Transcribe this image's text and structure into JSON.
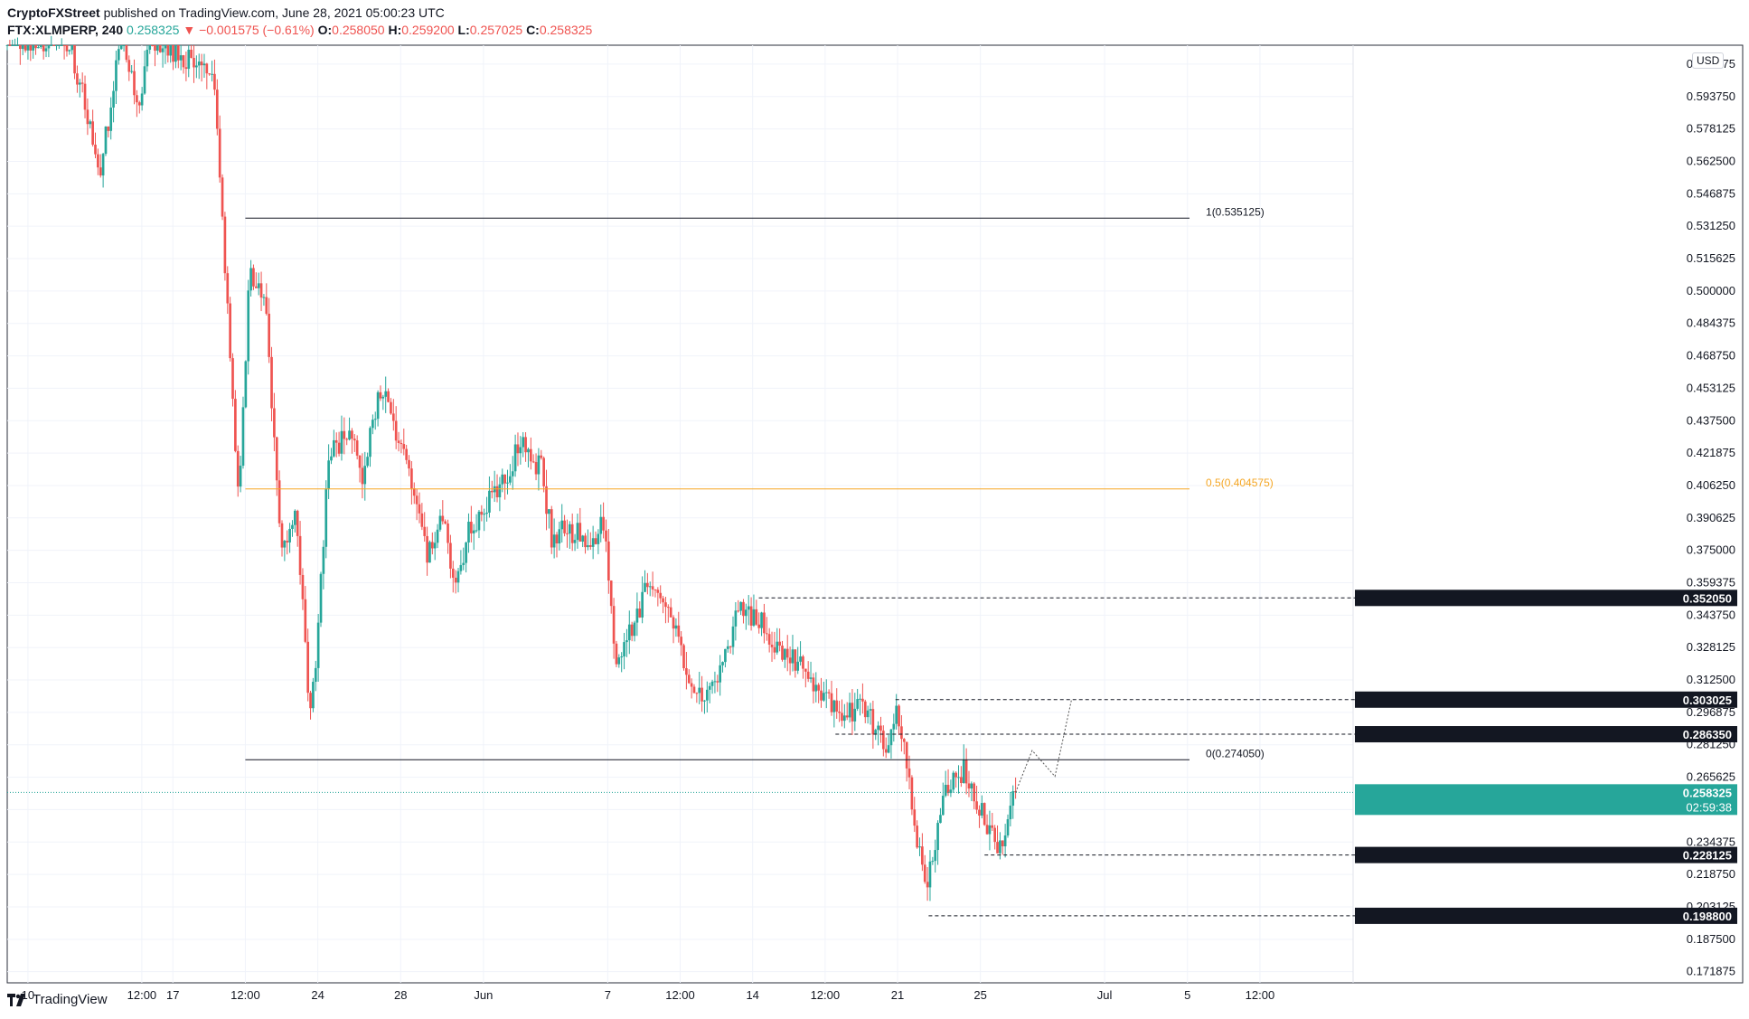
{
  "header": {
    "publisher": "CryptoFXStreet",
    "published_text": "published on TradingView.com, June 28, 2021 05:00:23 UTC",
    "symbol": "FTX:XLMPERP, 240",
    "last": "0.258325",
    "change": "−0.001575 (−0.61%)",
    "open_label": "O:",
    "open": "0.258050",
    "high_label": "H:",
    "high": "0.259200",
    "low_label": "L:",
    "low": "0.257025",
    "close_label": "C:",
    "close": "0.258325"
  },
  "currency_badge": "USD",
  "footer": {
    "brand": "TradingView",
    "logo_icon": "tradingview-logo-icon"
  },
  "colors": {
    "up": "#26a69a",
    "down": "#ef5350",
    "fib_mid": "#f5a623",
    "level_line": "#131722",
    "price_line": "#26a69a",
    "axis_text": "#131722"
  },
  "chart_data": {
    "type": "candlestick",
    "symbol": "XLMPERP",
    "interval": "240",
    "y_axis": {
      "range": [
        0.1665,
        0.6185
      ],
      "tick_labels": [
        "0.609375",
        "0.593750",
        "0.578125",
        "0.562500",
        "0.546875",
        "0.531250",
        "0.515625",
        "0.500000",
        "0.484375",
        "0.468750",
        "0.453125",
        "0.437500",
        "0.421875",
        "0.406250",
        "0.390625",
        "0.375000",
        "0.359375",
        "0.343750",
        "0.328125",
        "0.312500",
        "0.296875",
        "0.281250",
        "0.265625",
        "0.250000",
        "0.234375",
        "0.218750",
        "0.203125",
        "0.187500",
        "0.171875"
      ]
    },
    "x_axis": {
      "range_days_label": "May 9 2021 – Jul 13 2021",
      "ticks": [
        {
          "label": "10",
          "t": 1.0
        },
        {
          "label": "12:00",
          "t": 6.5
        },
        {
          "label": "17",
          "t": 8.0
        },
        {
          "label": "12:00",
          "t": 11.5
        },
        {
          "label": "24",
          "t": 15.0
        },
        {
          "label": "28",
          "t": 19.0
        },
        {
          "label": "Jun",
          "t": 23.0
        },
        {
          "label": "7",
          "t": 29.0
        },
        {
          "label": "12:00",
          "t": 32.5
        },
        {
          "label": "14",
          "t": 36.0
        },
        {
          "label": "12:00",
          "t": 39.5
        },
        {
          "label": "21",
          "t": 43.0
        },
        {
          "label": "25",
          "t": 47.0
        },
        {
          "label": "Jul",
          "t": 53.0
        },
        {
          "label": "5",
          "t": 57.0
        },
        {
          "label": "12:00",
          "t": 60.5
        }
      ]
    },
    "fib_levels": [
      {
        "label": "1(0.535125)",
        "value": 0.535125,
        "color": "#131722"
      },
      {
        "label": "0.5(0.404575)",
        "value": 0.404575,
        "color": "#f5a623"
      },
      {
        "label": "0(0.274050)",
        "value": 0.27405,
        "color": "#131722"
      }
    ],
    "horizontal_levels": [
      {
        "label": "0.352050",
        "value": 0.35205
      },
      {
        "label": "0.303025",
        "value": 0.303025
      },
      {
        "label": "0.286350",
        "value": 0.28635
      },
      {
        "label": "0.228125",
        "value": 0.228125
      },
      {
        "label": "0.198800",
        "value": 0.1988
      }
    ],
    "current_price": {
      "symbol_label": "XLMPERP",
      "value": 0.258325,
      "label": "0.258325",
      "countdown": "02:59:38"
    },
    "projection_path": [
      {
        "t": 48.7,
        "y": 0.2583
      },
      {
        "t": 49.5,
        "y": 0.2785
      },
      {
        "t": 50.6,
        "y": 0.266
      },
      {
        "t": 51.4,
        "y": 0.303
      }
    ],
    "anchors": [
      {
        "t": 0.0,
        "y": 0.622
      },
      {
        "t": 3.0,
        "y": 0.62
      },
      {
        "t": 4.5,
        "y": 0.56
      },
      {
        "t": 5.5,
        "y": 0.62
      },
      {
        "t": 6.3,
        "y": 0.592
      },
      {
        "t": 7.0,
        "y": 0.62
      },
      {
        "t": 10.0,
        "y": 0.605
      },
      {
        "t": 10.8,
        "y": 0.46
      },
      {
        "t": 11.2,
        "y": 0.4
      },
      {
        "t": 11.7,
        "y": 0.51
      },
      {
        "t": 12.5,
        "y": 0.49
      },
      {
        "t": 13.2,
        "y": 0.38
      },
      {
        "t": 14.0,
        "y": 0.39
      },
      {
        "t": 14.6,
        "y": 0.3
      },
      {
        "t": 14.9,
        "y": 0.32
      },
      {
        "t": 15.5,
        "y": 0.42
      },
      {
        "t": 16.5,
        "y": 0.43
      },
      {
        "t": 17.2,
        "y": 0.41
      },
      {
        "t": 18.0,
        "y": 0.455
      },
      {
        "t": 19.2,
        "y": 0.42
      },
      {
        "t": 20.3,
        "y": 0.37
      },
      {
        "t": 21.0,
        "y": 0.395
      },
      {
        "t": 21.7,
        "y": 0.355
      },
      {
        "t": 22.3,
        "y": 0.385
      },
      {
        "t": 23.0,
        "y": 0.395
      },
      {
        "t": 24.0,
        "y": 0.41
      },
      {
        "t": 24.8,
        "y": 0.425
      },
      {
        "t": 25.8,
        "y": 0.415
      },
      {
        "t": 26.3,
        "y": 0.38
      },
      {
        "t": 27.0,
        "y": 0.385
      },
      {
        "t": 28.2,
        "y": 0.38
      },
      {
        "t": 28.8,
        "y": 0.39
      },
      {
        "t": 29.4,
        "y": 0.32
      },
      {
        "t": 30.5,
        "y": 0.345
      },
      {
        "t": 31.0,
        "y": 0.36
      },
      {
        "t": 32.3,
        "y": 0.335
      },
      {
        "t": 33.2,
        "y": 0.302
      },
      {
        "t": 34.5,
        "y": 0.315
      },
      {
        "t": 35.3,
        "y": 0.345
      },
      {
        "t": 36.5,
        "y": 0.34
      },
      {
        "t": 37.5,
        "y": 0.325
      },
      {
        "t": 38.5,
        "y": 0.318
      },
      {
        "t": 39.5,
        "y": 0.305
      },
      {
        "t": 40.4,
        "y": 0.29
      },
      {
        "t": 41.0,
        "y": 0.302
      },
      {
        "t": 41.8,
        "y": 0.292
      },
      {
        "t": 42.4,
        "y": 0.278
      },
      {
        "t": 43.0,
        "y": 0.298
      },
      {
        "t": 43.6,
        "y": 0.258
      },
      {
        "t": 44.3,
        "y": 0.215
      },
      {
        "t": 44.6,
        "y": 0.222
      },
      {
        "t": 45.2,
        "y": 0.255
      },
      {
        "t": 46.2,
        "y": 0.27
      },
      {
        "t": 46.8,
        "y": 0.255
      },
      {
        "t": 47.5,
        "y": 0.238
      },
      {
        "t": 48.0,
        "y": 0.232
      },
      {
        "t": 48.5,
        "y": 0.255
      },
      {
        "t": 48.7,
        "y": 0.2583
      }
    ],
    "legend": "none",
    "grid": true
  }
}
